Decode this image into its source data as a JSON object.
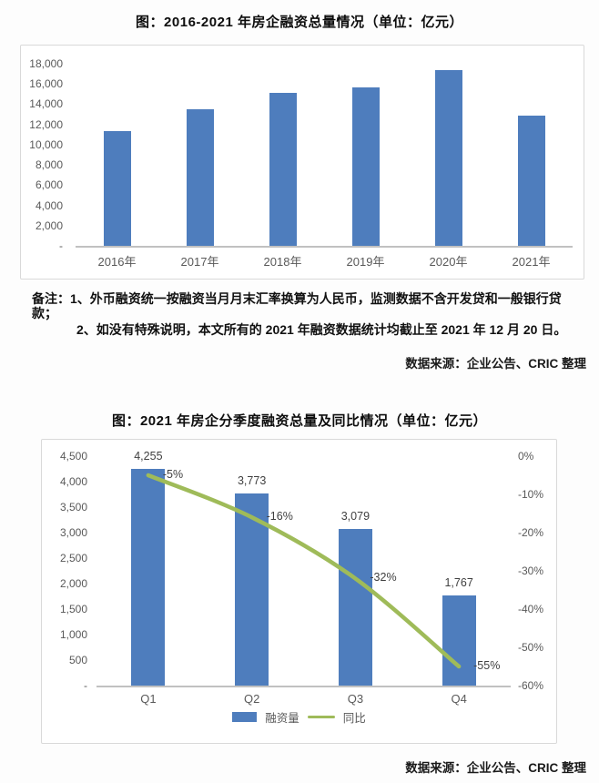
{
  "colors": {
    "bar": "#4e7dbd",
    "line": "#9fbb59",
    "axis_text": "#595959",
    "value_label": "#404040",
    "border": "#d9d9d9",
    "axis_line": "#c1c1c1",
    "title": "#0d0d0d"
  },
  "notes": {
    "line1": "备注：1、外币融资统一按融资当月月末汇率换算为人民币，监测数据不含开发贷和一般银行贷款；",
    "line2": "2、如没有特殊说明，本文所有的 2021 年融资数据统计均截止至 2021 年 12 月 20 日。"
  },
  "chart_data": [
    {
      "type": "bar",
      "title": "图：2016-2021 年房企融资总量情况（单位：亿元）",
      "categories": [
        "2016年",
        "2017年",
        "2018年",
        "2019年",
        "2020年",
        "2021年"
      ],
      "values": [
        11300,
        13500,
        15100,
        15700,
        17400,
        12900
      ],
      "xlabel": "",
      "ylabel": "",
      "ylim": [
        0,
        18000
      ],
      "ytick_values": [
        18000,
        16000,
        14000,
        12000,
        10000,
        8000,
        6000,
        4000,
        2000,
        0
      ],
      "ytick_labels": [
        "18,000",
        "16,000",
        "14,000",
        "12,000",
        "10,000",
        "8,000",
        "6,000",
        "4,000",
        "2,000",
        "-"
      ],
      "grid": false,
      "legend": false,
      "source": "数据来源：企业公告、CRIC 整理"
    },
    {
      "type": "bar+line",
      "title": "图：2021 年房企分季度融资总量及同比情况（单位：亿元）",
      "categories": [
        "Q1",
        "Q2",
        "Q3",
        "Q4"
      ],
      "series": [
        {
          "name": "融资量",
          "type": "bar",
          "axis": "left",
          "values": [
            4255,
            3773,
            3079,
            1767
          ],
          "labels": [
            "4,255",
            "3,773",
            "3,079",
            "1,767"
          ]
        },
        {
          "name": "同比",
          "type": "line",
          "axis": "right",
          "values": [
            -5,
            -16,
            -32,
            -55
          ],
          "labels": [
            "-5%",
            "-16%",
            "-32%",
            "-55%"
          ]
        }
      ],
      "left_ylim": [
        0,
        4500
      ],
      "left_ytick_values": [
        4500,
        4000,
        3500,
        3000,
        2500,
        2000,
        1500,
        1000,
        500,
        0
      ],
      "left_ytick_labels": [
        "4,500",
        "4,000",
        "3,500",
        "3,000",
        "2,500",
        "2,000",
        "1,500",
        "1,000",
        "500",
        "-"
      ],
      "right_ylim": [
        -60,
        0
      ],
      "right_ytick_values": [
        0,
        -10,
        -20,
        -30,
        -40,
        -50,
        -60
      ],
      "right_ytick_labels": [
        "0%",
        "-10%",
        "-20%",
        "-30%",
        "-40%",
        "-50%",
        "-60%"
      ],
      "legend_position": "bottom",
      "grid": false,
      "source": "数据来源：企业公告、CRIC 整理"
    }
  ]
}
